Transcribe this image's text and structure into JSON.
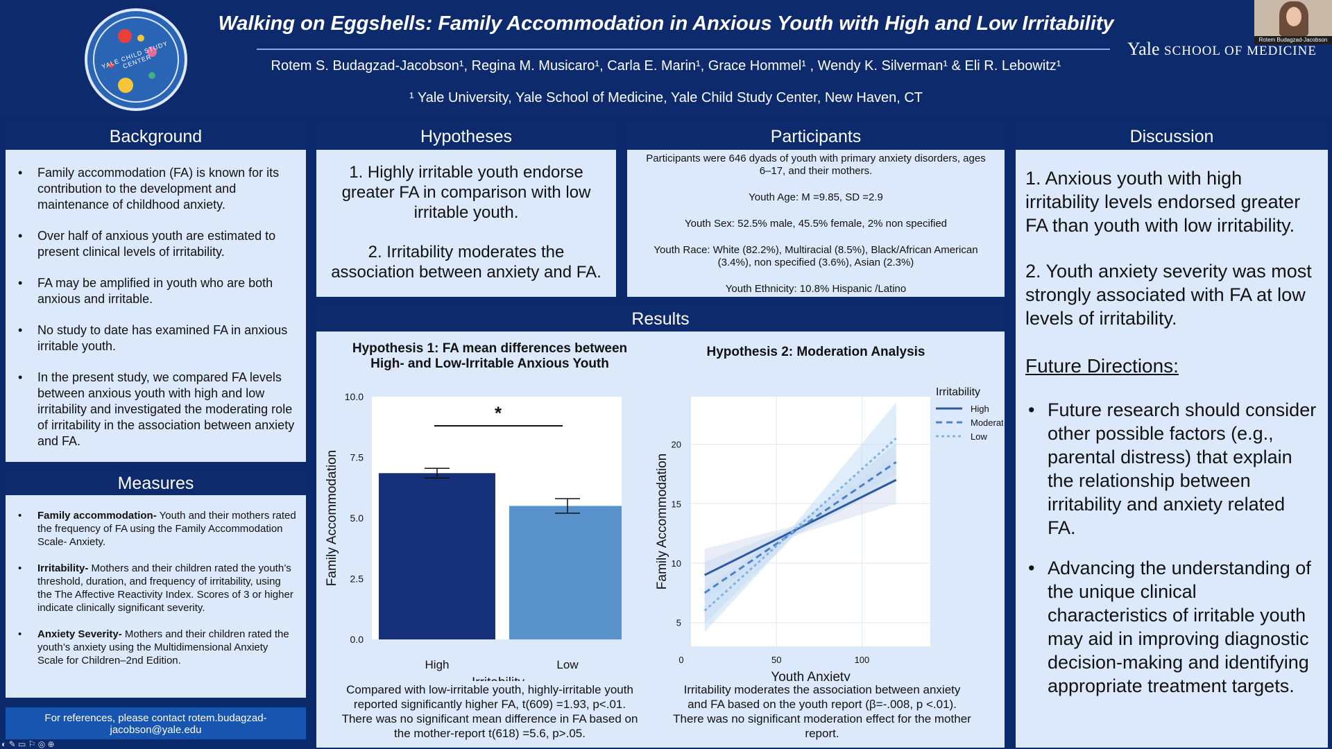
{
  "header": {
    "title": "Walking on Eggshells: Family Accommodation in Anxious Youth with High and Low Irritability",
    "authors": "Rotem S. Budagzad-Jacobson¹, Regina M. Musicaro¹, Carla E. Marin¹, Grace Hommel¹ , Wendy K. Silverman¹ & Eli R. Lebowitz¹",
    "affiliation": "¹ Yale University, Yale School of Medicine, Yale Child Study Center, New Haven, CT",
    "logo_text": "YALE CHILD STUDY CENTER",
    "brand_main": "Yale",
    "brand_sub": "SCHOOL OF MEDICINE",
    "video_caption": "Rotem Budagzad-Jacobson"
  },
  "background": {
    "heading": "Background",
    "items": [
      "Family accommodation (FA) is known for its contribution to the development and maintenance of childhood anxiety.",
      "Over half of anxious youth are estimated to present clinical levels of irritability.",
      "FA may be amplified in youth who are both anxious and irritable.",
      "No study to date has examined FA in anxious irritable youth.",
      "In the present study, we compared FA levels between anxious youth with high and low irritability and investigated the moderating role of irritability in the association between anxiety and FA."
    ]
  },
  "measures": {
    "heading": "Measures",
    "items": [
      {
        "term": "Family accommodation-",
        "text": " Youth and their mothers rated the frequency of FA using the Family Accommodation Scale- Anxiety."
      },
      {
        "term": "Irritability-",
        "text": " Mothers and their children rated the youth’s threshold, duration, and frequency of irritability, using the The Affective Reactivity Index. Scores of 3 or higher indicate clinically significant severity."
      },
      {
        "term": "Anxiety Severity-",
        "text": " Mothers and their children rated the youth’s anxiety using the Multidimensional Anxiety Scale for Children–2nd Edition."
      }
    ]
  },
  "contact": "For references, please contact rotem.budagzad-jacobson@yale.edu",
  "hypotheses": {
    "heading": "Hypotheses",
    "h1": "1. Highly irritable youth endorse greater FA in comparison with low irritable youth.",
    "h2": "2. Irritability moderates the association between anxiety and FA."
  },
  "participants": {
    "heading": "Participants",
    "intro": "Participants were 646 dyads of youth with primary anxiety disorders, ages 6–17, and their mothers.",
    "age_label": "Youth Age:",
    "age_value": " M =9.85, SD =2.9",
    "sex_label": "Youth Sex:",
    "sex_value": " 52.5% male, 45.5% female, 2% non specified",
    "race_label": "Youth Race:",
    "race_value": " White (82.2%), Multiracial (8.5%), Black/African American (3.4%), non specified (3.6%), Asian (2.3%)",
    "eth_label": "Youth Ethnicity:",
    "eth_value": " 10.8% Hispanic /Latino"
  },
  "results": {
    "heading": "Results",
    "chart1_title": "Hypothesis 1: FA mean differences between High- and Low-Irritable Anxious Youth",
    "chart1_caption": "Compared with low-irritable youth, highly-irritable youth reported significantly higher FA, t(609) =1.93, p<.01. There was no significant mean difference in FA based on the mother-report t(618) =5.6, p>.05.",
    "chart2_title": "Hypothesis 2: Moderation Analysis",
    "chart2_caption": "Irritability moderates the association between anxiety and FA based on the youth report (β=-.008, p <.01). There was no significant moderation effect for the mother report."
  },
  "discussion": {
    "heading": "Discussion",
    "p1": "1. Anxious youth with high irritability levels endorsed greater FA than youth with low irritability.",
    "p2": "2. Youth anxiety severity was most strongly associated with FA at low levels of irritability.",
    "future_heading": "Future Directions:",
    "items": [
      "Future research should consider other possible factors (e.g., parental distress) that explain the relationship between irritability and anxiety related FA.",
      "Advancing the understanding of the unique clinical characteristics of irritable youth may aid in improving diagnostic decision-making and identifying appropriate treatment targets."
    ]
  },
  "chart_data": [
    {
      "type": "bar",
      "categories": [
        "High",
        "Low"
      ],
      "values": [
        6.85,
        5.5
      ],
      "errors": [
        0.2,
        0.3
      ],
      "colors": [
        "#16307a",
        "#5a93cc"
      ],
      "xlabel": "Irritability",
      "ylabel": "Family Accommodation",
      "ylim": [
        0,
        10
      ],
      "yticks": [
        "0.0",
        "2.5",
        "5.0",
        "7.5",
        "10.0"
      ],
      "significance": "*"
    },
    {
      "type": "line",
      "xlabel": "Youth Anxiety",
      "ylabel": "Family Accommodation",
      "xticks": [
        "0",
        "50",
        "100"
      ],
      "yticks": [
        "5",
        "10",
        "15",
        "20"
      ],
      "legend_title": "Irritability",
      "legend_position": "top-right",
      "series": [
        {
          "name": "High",
          "x": [
            8,
            120
          ],
          "y": [
            9,
            17
          ],
          "color": "#2c5aa0",
          "dash": ""
        },
        {
          "name": "Moderate",
          "x": [
            8,
            120
          ],
          "y": [
            7.5,
            18.5
          ],
          "color": "#4f82c4",
          "dash": "9,6"
        },
        {
          "name": "Low",
          "x": [
            8,
            120
          ],
          "y": [
            6,
            20.5
          ],
          "color": "#7eb3e6",
          "dash": "4,4"
        }
      ]
    }
  ]
}
